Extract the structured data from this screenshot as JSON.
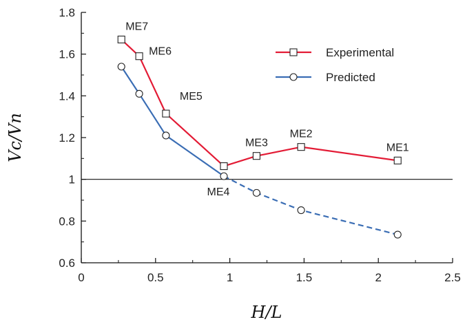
{
  "chart_data": {
    "type": "line",
    "title": "",
    "xlabel": "H/L",
    "ylabel": "Vc/Vn",
    "xlim": [
      0,
      2.5
    ],
    "ylim": [
      0.6,
      1.8
    ],
    "xticks": [
      0,
      0.5,
      1,
      1.5,
      2,
      2.5
    ],
    "xtick_labels": [
      "0",
      "0.5",
      "1",
      "1.5",
      "2",
      "2.5"
    ],
    "yticks": [
      0.6,
      0.8,
      1.0,
      1.2,
      1.4,
      1.6,
      1.8
    ],
    "ytick_labels": [
      "0.6",
      "0.8",
      "1",
      "1.2",
      "1.4",
      "1.6",
      "1.8"
    ],
    "reference_line_y": 1,
    "grid": false,
    "legend_position": "top-right",
    "series": [
      {
        "name": "Experimental",
        "color": "#e31b35",
        "marker": "square",
        "x": [
          0.27,
          0.39,
          0.57,
          0.96,
          1.18,
          1.48,
          2.13
        ],
        "y": [
          1.67,
          1.59,
          1.315,
          1.063,
          1.112,
          1.155,
          1.09
        ]
      },
      {
        "name": "Predicted",
        "color": "#3a6db4",
        "marker": "circle",
        "x": [
          0.27,
          0.39,
          0.57,
          0.96,
          1.18,
          1.48,
          2.13
        ],
        "y": [
          1.54,
          1.41,
          1.21,
          1.015,
          0.935,
          0.852,
          0.735
        ],
        "dashed_from_index": 3
      }
    ],
    "point_labels": [
      {
        "text": "ME7",
        "series": 0,
        "index": 0,
        "anchor": "above-right"
      },
      {
        "text": "ME6",
        "series": 0,
        "index": 1,
        "anchor": "right"
      },
      {
        "text": "ME5",
        "series": 0,
        "index": 2,
        "anchor": "above-right"
      },
      {
        "text": "ME4",
        "series": 1,
        "index": 3,
        "anchor": "below-left"
      },
      {
        "text": "ME3",
        "series": 0,
        "index": 4,
        "anchor": "above"
      },
      {
        "text": "ME2",
        "series": 0,
        "index": 5,
        "anchor": "above"
      },
      {
        "text": "ME1",
        "series": 0,
        "index": 6,
        "anchor": "above"
      }
    ]
  }
}
